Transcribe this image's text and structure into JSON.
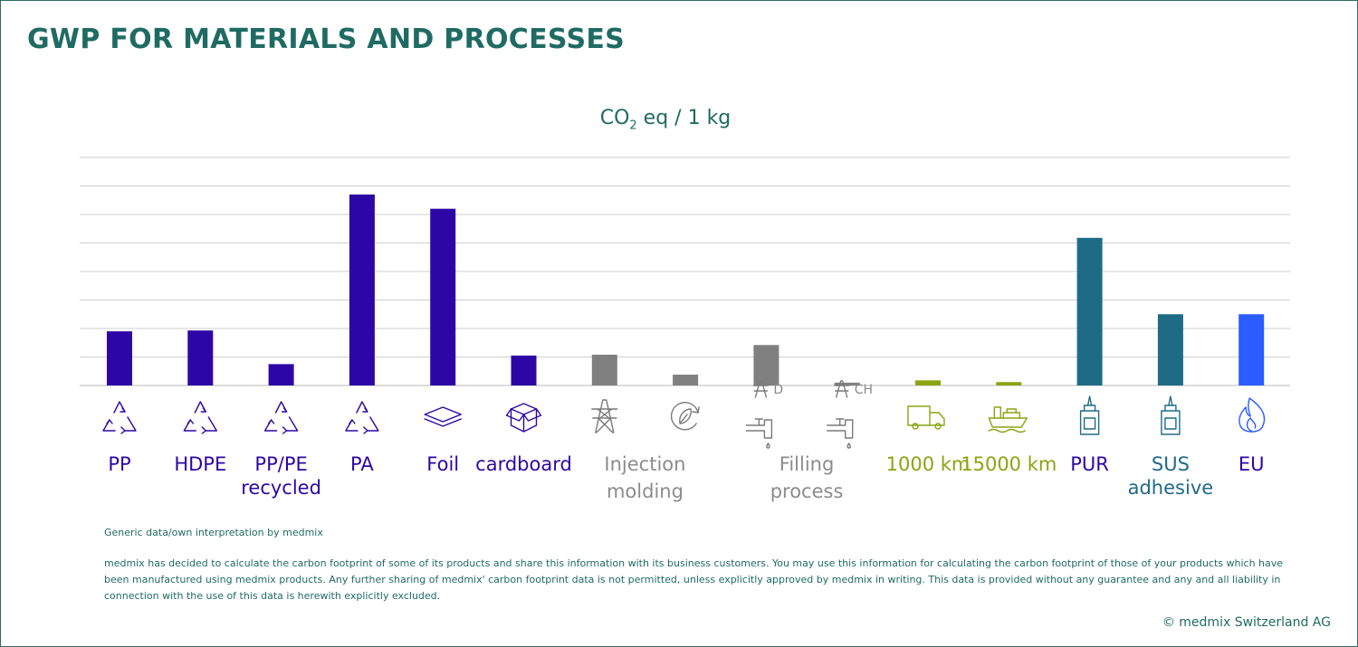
{
  "title": "GWP FOR MATERIALS AND PROCESSES",
  "unit_label": {
    "main": "CO",
    "sub": "2",
    "rest": " eq / 1 kg"
  },
  "chart_data": {
    "type": "bar",
    "ylim": [
      0,
      8
    ],
    "grid": true,
    "categories": [
      "PP",
      "HDPE",
      "PP/PE recycled",
      "PA",
      "Foil",
      "cardboard",
      "Injection molding (power)",
      "Injection molding (recycling)",
      "Filling process D",
      "Filling process CH",
      "1000 km",
      "15000 km",
      "PUR",
      "SUS adhesive",
      "EU"
    ],
    "values": [
      1.9,
      1.93,
      0.75,
      6.7,
      6.2,
      1.05,
      1.08,
      0.38,
      1.42,
      0.1,
      0.18,
      0.12,
      5.18,
      2.5,
      2.5
    ],
    "colors": [
      "#2d07a6",
      "#2d07a6",
      "#2d07a6",
      "#2d07a6",
      "#2d07a6",
      "#2d07a6",
      "#808080",
      "#808080",
      "#808080",
      "#808080",
      "#8aa512",
      "#8aa512",
      "#1f6b86",
      "#1f6b86",
      "#2a5cff"
    ],
    "icons": [
      "recycle-icon",
      "recycle-icon",
      "recycle-icon",
      "recycle-icon",
      "layers-icon",
      "box-icon",
      "power-pylon-icon",
      "leaf-cycle-icon",
      "pylon-tap-icon",
      "pylon-tap-icon",
      "truck-icon",
      "ship-icon",
      "glue-bottle-icon",
      "glue-bottle-icon",
      "flame-icon"
    ],
    "icon_tags": [
      "",
      "",
      "",
      "",
      "",
      "",
      "",
      "",
      "D",
      "CH",
      "",
      "",
      "",
      "",
      ""
    ],
    "labels": [
      {
        "lines": [
          "PP"
        ],
        "color": "#2d07a6"
      },
      {
        "lines": [
          "HDPE"
        ],
        "color": "#2d07a6"
      },
      {
        "lines": [
          "PP/PE",
          "recycled"
        ],
        "color": "#2d07a6"
      },
      {
        "lines": [
          "PA"
        ],
        "color": "#2d07a6"
      },
      {
        "lines": [
          "Foil"
        ],
        "color": "#2d07a6"
      },
      {
        "lines": [
          "cardboard"
        ],
        "color": "#2d07a6"
      },
      {
        "lines": [
          "Injection",
          "molding"
        ],
        "color": "#8c8c8c",
        "span": [
          6,
          7
        ]
      },
      {
        "lines": [
          "Filling",
          "process"
        ],
        "color": "#8c8c8c",
        "span": [
          8,
          9
        ]
      },
      {
        "lines": [
          "1000 km"
        ],
        "color": "#8aa512"
      },
      {
        "lines": [
          "15000 km"
        ],
        "color": "#8aa512"
      },
      {
        "lines": [
          "PUR"
        ],
        "color": "#2d07a6"
      },
      {
        "lines": [
          "SUS",
          "adhesive"
        ],
        "color": "#1f6b86"
      },
      {
        "lines": [
          "EU"
        ],
        "color": "#2d07a6"
      }
    ]
  },
  "footnotes": {
    "source": "Generic data/own interpretation by medmix",
    "disclaimer": "medmix has decided to calculate the carbon footprint of some of its products and share this information with its business customers. You may use this information for calculating the carbon footprint of those of your products which have been  manufactured using medmix products. Any further sharing of medmix' carbon footprint data is not permitted, unless explicitly approved by medmix in writing. This data is provided without any guarantee and any and all liability in connection with the use of this data is herewith explicitly excluded."
  },
  "copyright": "© medmix Switzerland AG"
}
